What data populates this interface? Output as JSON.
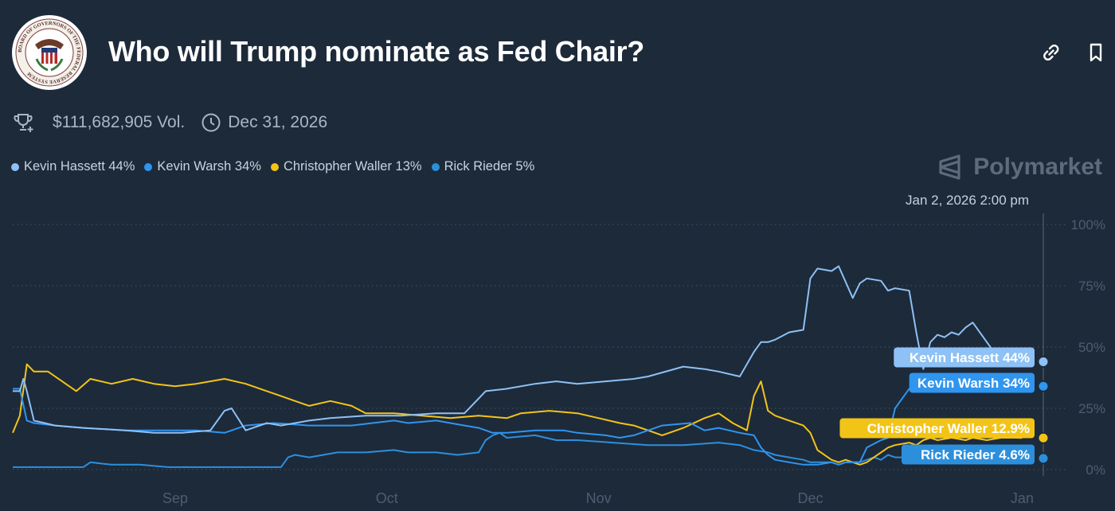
{
  "header": {
    "title": "Who will Trump nominate as Fed Chair?",
    "seal_text": "BOARD OF GOVERNORS OF THE FEDERAL RESERVE SYSTEM"
  },
  "meta": {
    "volume": "$111,682,905 Vol.",
    "end_date": "Dec 31, 2026"
  },
  "brand": {
    "name": "Polymarket"
  },
  "colors": {
    "background": "#1d2a3a",
    "kevin_hassett": "#8ec1f5",
    "kevin_warsh": "#2f95ef",
    "christopher_waller": "#f3c418",
    "rick_rieder": "#2c8fdc"
  },
  "legend": [
    {
      "label": "Kevin Hassett 44%",
      "color": "#8ec1f5"
    },
    {
      "label": "Kevin Warsh 34%",
      "color": "#2f95ef"
    },
    {
      "label": "Christopher Waller 13%",
      "color": "#f3c418"
    },
    {
      "label": "Rick Rieder 5%",
      "color": "#2c8fdc"
    }
  ],
  "chart_data": {
    "type": "line",
    "title": "Who will Trump nominate as Fed Chair?",
    "hover_date": "Jan 2, 2026 2:00 pm",
    "xlabel": "",
    "ylabel": "",
    "ylim": [
      0,
      100
    ],
    "y_ticks": [
      "100%",
      "75%",
      "50%",
      "25%",
      "0%"
    ],
    "y_tick_values": [
      100,
      75,
      50,
      25,
      0
    ],
    "x_ticks": [
      "Sep",
      "Oct",
      "Nov",
      "Dec",
      "Jan"
    ],
    "x_tick_values": [
      23,
      53,
      83,
      113,
      143
    ],
    "x_unit": "days since Aug 9, 2025",
    "xlim": [
      0,
      146
    ],
    "grid": true,
    "series": [
      {
        "name": "Kevin Hassett",
        "color": "#8ec1f5",
        "end_label": "Kevin Hassett 44%",
        "end_value": 44,
        "x": [
          0,
          1,
          1.5,
          2,
          3,
          6,
          10,
          16,
          20,
          24,
          28,
          30,
          31,
          33,
          36,
          38,
          42,
          45,
          50,
          55,
          60,
          64,
          66,
          67,
          70,
          74,
          77,
          80,
          84,
          88,
          90,
          95,
          98,
          100,
          103,
          105,
          106,
          107,
          108,
          110,
          112,
          113,
          114,
          116,
          117,
          119,
          120,
          121,
          123,
          124,
          125,
          127,
          128,
          129,
          130,
          131,
          132,
          133,
          134,
          135,
          136,
          138,
          139,
          140,
          141,
          142,
          143
        ],
        "y": [
          32,
          32,
          37,
          32,
          20,
          18,
          17,
          16,
          15,
          15,
          16,
          24,
          25,
          16,
          19,
          18,
          20,
          21,
          22,
          22,
          23,
          23,
          29,
          32,
          33,
          35,
          36,
          35,
          36,
          37,
          38,
          42,
          41,
          40,
          38,
          48,
          52,
          52,
          53,
          56,
          57,
          78,
          82,
          81,
          83,
          70,
          76,
          78,
          77,
          73,
          74,
          73,
          56,
          41,
          52,
          55,
          54,
          56,
          55,
          58,
          60,
          52,
          48,
          46,
          44,
          44,
          44
        ]
      },
      {
        "name": "Kevin Warsh",
        "color": "#2f95ef",
        "end_label": "Kevin Warsh 34%",
        "end_value": 34,
        "x": [
          0,
          1,
          2,
          3,
          6,
          10,
          16,
          20,
          26,
          30,
          33,
          37,
          42,
          48,
          54,
          56,
          60,
          64,
          66,
          67,
          68,
          70,
          74,
          78,
          80,
          84,
          86,
          88,
          92,
          96,
          98,
          100,
          103,
          105,
          106,
          107,
          108,
          110,
          112,
          113,
          114,
          116,
          117,
          118,
          120,
          121,
          123,
          124,
          125,
          127,
          128,
          129,
          130,
          131,
          133,
          134,
          136,
          138,
          139,
          140,
          141,
          142,
          143
        ],
        "y": [
          33,
          33,
          20,
          19,
          18,
          17,
          16,
          16,
          16,
          15,
          18,
          19,
          18,
          18,
          20,
          19,
          20,
          18,
          17,
          16,
          15,
          15,
          16,
          16,
          15,
          14,
          13,
          14,
          18,
          19,
          16,
          17,
          15,
          14,
          9,
          6,
          4,
          3,
          2,
          2,
          2,
          3,
          2,
          3,
          3,
          9,
          12,
          13,
          25,
          33,
          34,
          35,
          33,
          34,
          35,
          34,
          35,
          37,
          36,
          35,
          34,
          34,
          34
        ]
      },
      {
        "name": "Christopher Waller",
        "color": "#f3c418",
        "end_label": "Christopher Waller 12.9%",
        "end_value": 12.9,
        "x": [
          0,
          1,
          2,
          3,
          5,
          7,
          9,
          11,
          14,
          17,
          20,
          23,
          26,
          30,
          33,
          36,
          38,
          40,
          42,
          45,
          48,
          50,
          54,
          58,
          62,
          66,
          70,
          72,
          76,
          80,
          83,
          86,
          88,
          90,
          92,
          95,
          98,
          100,
          102,
          104,
          105,
          106,
          107,
          108,
          110,
          112,
          113,
          114,
          116,
          117,
          118,
          120,
          121,
          122,
          123,
          124,
          125,
          127,
          128,
          129,
          130,
          131,
          133,
          135,
          136,
          138,
          140,
          141,
          142,
          143
        ],
        "y": [
          15,
          22,
          43,
          40,
          40,
          36,
          32,
          37,
          35,
          37,
          35,
          34,
          35,
          37,
          35,
          32,
          30,
          28,
          26,
          28,
          26,
          23,
          23,
          22,
          21,
          22,
          21,
          23,
          24,
          23,
          21,
          19,
          18,
          16,
          14,
          17,
          21,
          23,
          19,
          16,
          30,
          36,
          24,
          22,
          20,
          18,
          15,
          8,
          4,
          3,
          4,
          2,
          3,
          5,
          7,
          9,
          10,
          11,
          10,
          12,
          13,
          12,
          13,
          12,
          13,
          12,
          13,
          13,
          13,
          12.9
        ]
      },
      {
        "name": "Rick Rieder",
        "color": "#2c8fdc",
        "end_label": "Rick Rieder 4.6%",
        "end_value": 4.6,
        "x": [
          0,
          1,
          2,
          4,
          7,
          10,
          11,
          14,
          18,
          22,
          28,
          30,
          33,
          36,
          38,
          39,
          40,
          42,
          46,
          50,
          54,
          56,
          60,
          63,
          66,
          67,
          68,
          69,
          70,
          74,
          77,
          80,
          85,
          90,
          95,
          100,
          103,
          105,
          107,
          108,
          110,
          112,
          113,
          114,
          116,
          117,
          118,
          120,
          121,
          122,
          123,
          124,
          125,
          127,
          128,
          129,
          130,
          131,
          132,
          133,
          134,
          135,
          136,
          137,
          138,
          140,
          141,
          142,
          143
        ],
        "y": [
          1,
          1,
          1,
          1,
          1,
          1,
          3,
          2,
          2,
          1,
          1,
          1,
          1,
          1,
          1,
          5,
          6,
          5,
          7,
          7,
          8,
          7,
          7,
          6,
          7,
          12,
          14,
          15,
          13,
          14,
          12,
          12,
          11,
          10,
          10,
          11,
          10,
          8,
          7,
          6,
          5,
          4,
          3,
          3,
          3,
          2,
          3,
          3,
          4,
          5,
          4,
          6,
          5,
          5,
          4,
          5,
          4,
          5,
          4,
          5,
          4,
          5,
          5,
          4,
          5,
          4,
          5,
          5,
          4.6
        ]
      }
    ]
  }
}
